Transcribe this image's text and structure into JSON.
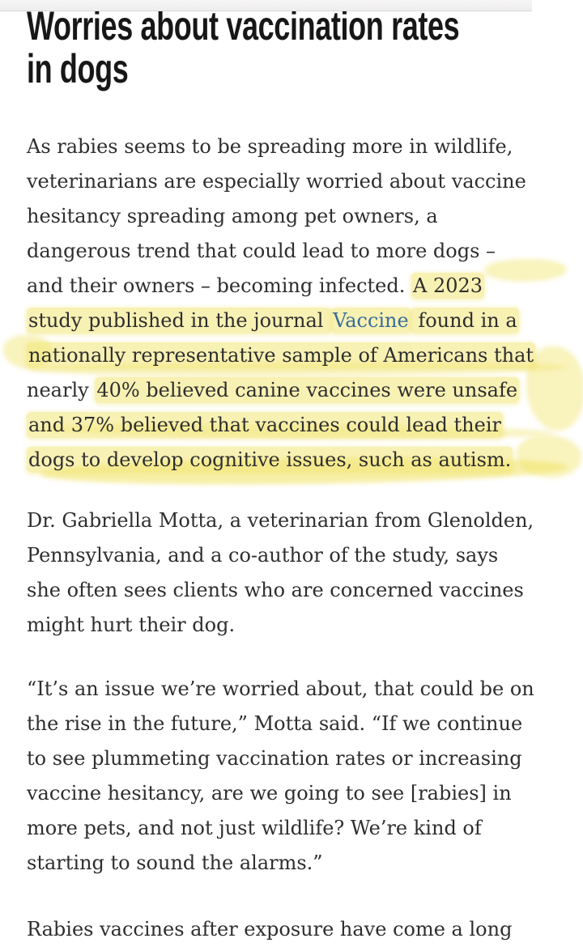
{
  "article": {
    "heading": "Worries about vaccination rates\nin dogs",
    "p1": {
      "normal_start": "As rabies seems to be spreading more in wildlife,\nveterinarians are especially worried about vaccine\nhesitancy spreading among pet owners, a\ndangerous trend that could lead to more dogs –\nand their owners – becoming infected. ",
      "hl_start": "A 2023\nstudy published in the journal ",
      "link_text": "Vaccine",
      "hl_mid": " found in a\nnationally representative sample of Americans that",
      "normal_mid": "\nnearly ",
      "hl_end": "40% believed canine vaccines were unsafe\nand 37% believed that vaccines could lead their\ndogs to develop cognitive issues, such as autism."
    },
    "p2": "Dr. Gabriella Motta, a veterinarian from Glenolden,\nPennsylvania, and a co-author of the study, says\nshe often sees clients who are concerned vaccines\nmight hurt their dog.",
    "p3": "“It’s an issue we’re worried about, that could be on\nthe rise in the future,” Motta said. “If we continue\nto see plummeting vaccination rates or increasing\nvaccine hesitancy, are we going to see [rabies] in\nmore pets, and not just wildlife? We’re kind of\nstarting to sound the alarms.”",
    "p4": "Rabies vaccines after exposure have come a long"
  },
  "colors": {
    "heading_text": "#171717",
    "body_text": "#2e2e2e",
    "link_blue": "#376c99",
    "highlight_yellow": "#f3e676",
    "top_bar_gray": "#efeded"
  }
}
